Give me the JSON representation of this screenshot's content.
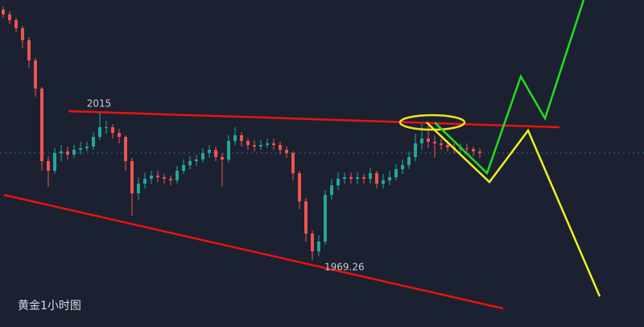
{
  "chart_data": {
    "type": "candlestick",
    "title": "黄金1小时图",
    "open": [
      2047,
      2045.5,
      2043.75,
      2041.25,
      2037.5,
      2031.25,
      2022.5,
      2000,
      1997,
      2002.5,
      2003,
      2002,
      2003.5,
      2004,
      2004.5,
      2007.5,
      2010.5,
      2010.5,
      2008.75,
      2007.5,
      2000,
      1990,
      1993,
      1994.5,
      1995.5,
      1995,
      1994.5,
      1994,
      1997,
      1998.75,
      2000,
      2000.5,
      2002.5,
      2003.5,
      2001.25,
      2000.5,
      2006.25,
      2008,
      2006.25,
      2005,
      2004.5,
      2005,
      2005.5,
      2005,
      2003.5,
      2002.5,
      1996.25,
      1987.5,
      1977.5,
      1972,
      1975,
      1989.5,
      1992.5,
      1994.5,
      1995,
      1994.5,
      1995,
      1994.5,
      1996.25,
      1993,
      1994,
      1995,
      1997.5,
      1998.75,
      2001.25,
      2005.5,
      2007,
      2006,
      2005.5,
      2005,
      2004.25,
      2004,
      2004,
      2003.75,
      2003
    ],
    "high": [
      2048,
      2046.5,
      2044.5,
      2042,
      2038.5,
      2032,
      2023,
      2001.5,
      2004,
      2005,
      2004.5,
      2005,
      2006,
      2006,
      2009,
      2015,
      2012.5,
      2011.5,
      2010,
      2008,
      2001,
      1995,
      1996.5,
      1997,
      1997,
      1996,
      1995.5,
      1998.5,
      2000.5,
      2001.5,
      2002,
      2004,
      2005,
      2004.5,
      2002.5,
      2008,
      2010.5,
      2009,
      2007,
      2006.5,
      2006.5,
      2007,
      2007,
      2006,
      2004.5,
      2003,
      1997,
      1988.5,
      1978.5,
      1977,
      1991,
      1994.5,
      1996.5,
      1996.5,
      1996.5,
      1996.5,
      1996,
      1998,
      1997,
      1996,
      1997,
      1999,
      2000.5,
      2003,
      2008.5,
      2011.5,
      2011,
      2008,
      2007,
      2006.5,
      2005.5,
      2005.5,
      2005.5,
      2004.5,
      2004
    ],
    "low": [
      2044.5,
      2042.5,
      2040,
      2035,
      2029,
      2020,
      1997,
      1992,
      1996,
      2000,
      2000.5,
      2001,
      2002,
      2003,
      2003.5,
      2006.5,
      2008.5,
      2007,
      2005.5,
      1997,
      1983,
      1988,
      1991.5,
      1993,
      1993.5,
      1993,
      1992.5,
      1993,
      1996,
      1997.5,
      1998.5,
      1999.5,
      2001,
      2000,
      1992,
      1999.5,
      2005,
      2004.5,
      2003.5,
      2003,
      2003.5,
      2004,
      2003.5,
      2002,
      2001,
      1994,
      1985,
      1975,
      1969.26,
      1970.5,
      1974,
      1988,
      1991,
      1993,
      1993,
      1993,
      1993,
      1993,
      1991.5,
      1991.5,
      1992.5,
      1994,
      1996,
      1997.5,
      2000,
      2003.5,
      2004,
      2001,
      2003.5,
      2003,
      2002.5,
      2002.5,
      2002.5,
      2001.5,
      2001
    ],
    "close": [
      2045.5,
      2043.75,
      2041.25,
      2037.5,
      2031.25,
      2022.5,
      2000,
      1997,
      2002.5,
      2003,
      2002,
      2003.5,
      2004,
      2004.5,
      2007.5,
      2010.5,
      2010.5,
      2008.75,
      2007.5,
      2000,
      1990,
      1993,
      1994.5,
      1995.5,
      1995,
      1994.5,
      1994,
      1997,
      1998.75,
      2000,
      2000.5,
      2002.5,
      2003.5,
      2001.25,
      2000.5,
      2006.25,
      2008,
      2006.25,
      2005,
      2004.5,
      2005,
      2005.5,
      2005,
      2003.5,
      2002.5,
      1996.25,
      1987.5,
      1977.5,
      1972,
      1975,
      1989.5,
      1992.5,
      1994.5,
      1995,
      1994.5,
      1995,
      1994.5,
      1996.25,
      1993,
      1994,
      1995,
      1997.5,
      1998.75,
      2001.25,
      2005.5,
      2007,
      2006,
      2005.5,
      2005,
      2004.25,
      2004,
      2004,
      2003.75,
      2003,
      2002.5
    ],
    "up_color": "#26a69a",
    "down_color": "#ef5350",
    "ylim": [
      1948.5,
      2050
    ],
    "high_label": {
      "value": 2015,
      "label": "2015"
    },
    "low_label": {
      "value": 1969.26,
      "label": "1969.26"
    }
  }
}
